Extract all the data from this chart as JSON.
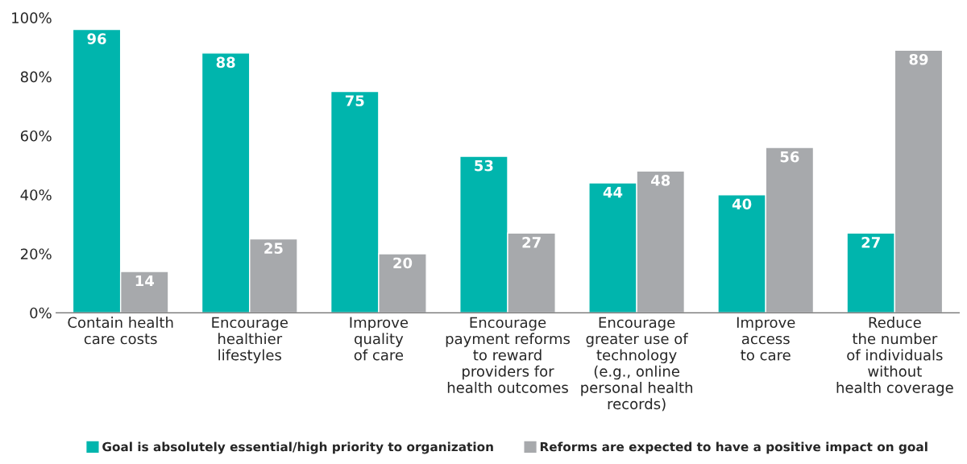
{
  "chart_data": {
    "type": "bar",
    "categories": [
      "Contain health\ncare costs",
      "Encourage\nhealthier\nlifestyles",
      "Improve\nquality\nof care",
      "Encourage\npayment reforms\nto reward\nproviders for\nhealth outcomes",
      "Encourage\ngreater use of\ntechnology\n(e.g., online\npersonal health\nrecords)",
      "Improve\naccess\nto care",
      "Reduce\nthe number\nof individuals\nwithout\nhealth coverage"
    ],
    "series": [
      {
        "name": "Goal is absolutely essential/high priority to organization",
        "color": "#00b5ad",
        "values": [
          96,
          88,
          75,
          53,
          44,
          40,
          27
        ]
      },
      {
        "name": "Reforms are expected to have a positive impact on goal",
        "color": "#a7a9ac",
        "values": [
          14,
          25,
          20,
          27,
          48,
          56,
          89
        ]
      }
    ],
    "ylim": [
      0,
      100
    ],
    "yticks": [
      {
        "value": 0,
        "label": "0%"
      },
      {
        "value": 20,
        "label": "20%"
      },
      {
        "value": 40,
        "label": "40%"
      },
      {
        "value": 60,
        "label": "60%"
      },
      {
        "value": 80,
        "label": "80%"
      },
      {
        "value": 100,
        "label": "100%"
      }
    ],
    "data_labels": true,
    "grid": false,
    "legend": "bottom"
  }
}
